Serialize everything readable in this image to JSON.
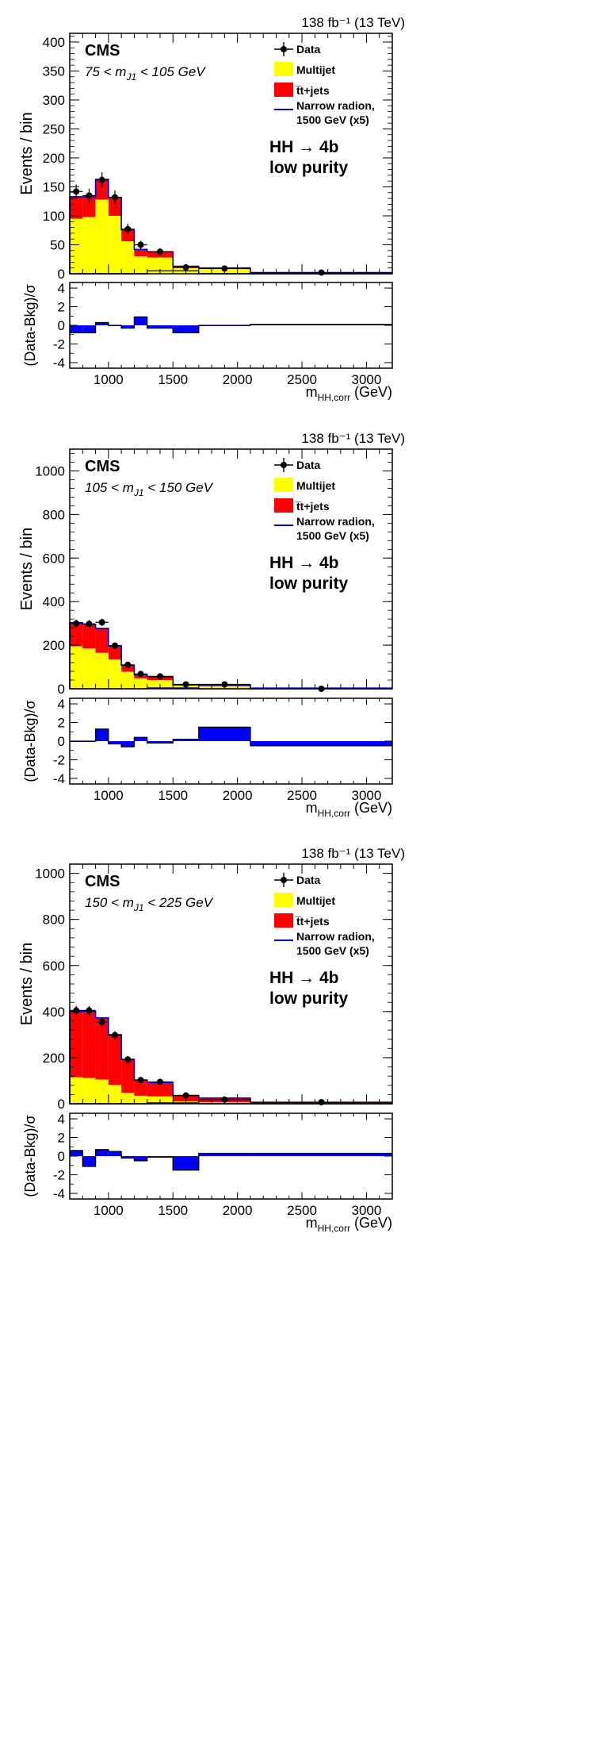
{
  "colors": {
    "multijet": "#ffff00",
    "ttbar": "#ff0000",
    "signal": "#0000cc",
    "ratio": "#0000ff",
    "data": "#000000",
    "frame": "#000000"
  },
  "labels": {
    "lumi": "138 fb⁻¹ (13 TeV)",
    "cms": "CMS",
    "process": "HH → 4b",
    "category": "low purity",
    "ylabel": "Events / bin",
    "ratio_ylabel": "(Data-Bkg)/σ",
    "xlabel": "m",
    "xlabel_sub": "HH,corr",
    "xlabel_unit": " (GeV)",
    "legend": {
      "data": "Data",
      "multijet": "Multijet",
      "ttbar": "t̅t+jets",
      "signal_line1": "Narrow radion,",
      "signal_line2": "1500 GeV (x5)"
    }
  },
  "chart_data": [
    {
      "type": "bar",
      "stacked": true,
      "title": "75 < m_J1 < 105 GeV",
      "mass_window": {
        "prefix": "75 < m",
        "sub": "J1",
        "suffix": " < 105 GeV"
      },
      "xlabel": "m_HH,corr (GeV)",
      "ylabel": "Events / bin",
      "xlim": [
        700,
        3200
      ],
      "ylim": [
        0,
        415
      ],
      "yticks": [
        0,
        50,
        100,
        150,
        200,
        250,
        300,
        350,
        400
      ],
      "xticks": [
        1000,
        1500,
        2000,
        2500,
        3000
      ],
      "bin_edges": [
        700,
        800,
        900,
        1000,
        1100,
        1200,
        1300,
        1500,
        1700,
        2100,
        3200
      ],
      "series": [
        {
          "name": "Multijet",
          "values": [
            95,
            98,
            128,
            100,
            56,
            30,
            28,
            10,
            8,
            2
          ]
        },
        {
          "name": "tt+jets",
          "values": [
            38,
            35,
            35,
            32,
            20,
            12,
            10,
            3,
            2,
            0
          ]
        },
        {
          "name": "Narrow radion, 1500 GeV (x5)",
          "values": [
            0,
            0,
            0,
            0,
            0,
            0,
            5,
            5,
            0,
            0
          ]
        }
      ],
      "data_points": [
        {
          "x": 750,
          "y": 142,
          "err": 12
        },
        {
          "x": 850,
          "y": 135,
          "err": 12
        },
        {
          "x": 950,
          "y": 162,
          "err": 13
        },
        {
          "x": 1050,
          "y": 132,
          "err": 12
        },
        {
          "x": 1150,
          "y": 77,
          "err": 9
        },
        {
          "x": 1250,
          "y": 50,
          "err": 7
        },
        {
          "x": 1400,
          "y": 38,
          "err": 6
        },
        {
          "x": 1600,
          "y": 11,
          "err": 3
        },
        {
          "x": 1900,
          "y": 9,
          "err": 3
        },
        {
          "x": 2650,
          "y": 2,
          "err": 1.4
        }
      ],
      "ratio": {
        "ylabel": "(Data-Bkg)/σ",
        "ylim": [
          -4.6,
          4.6
        ],
        "yticks": [
          -4,
          -2,
          0,
          2,
          4
        ],
        "values": [
          -0.8,
          -0.8,
          0.3,
          0.0,
          -0.3,
          0.9,
          -0.3,
          -0.8,
          0.0,
          0.1
        ]
      }
    },
    {
      "type": "bar",
      "stacked": true,
      "title": "105 < m_J1 < 150 GeV",
      "mass_window": {
        "prefix": "105 < m",
        "sub": "J1",
        "suffix": " < 150 GeV"
      },
      "xlabel": "m_HH,corr (GeV)",
      "ylabel": "Events / bin",
      "xlim": [
        700,
        3200
      ],
      "ylim": [
        0,
        1100
      ],
      "yticks": [
        0,
        200,
        400,
        600,
        800,
        1000
      ],
      "xticks": [
        1000,
        1500,
        2000,
        2500,
        3000
      ],
      "bin_edges": [
        700,
        800,
        900,
        1000,
        1100,
        1200,
        1300,
        1500,
        1700,
        2100,
        3200
      ],
      "series": [
        {
          "name": "Multijet",
          "values": [
            195,
            185,
            165,
            135,
            78,
            48,
            40,
            15,
            12,
            3
          ]
        },
        {
          "name": "tt+jets",
          "values": [
            108,
            110,
            112,
            62,
            30,
            17,
            15,
            3,
            3,
            0
          ]
        },
        {
          "name": "Narrow radion, 1500 GeV (x5)",
          "values": [
            0,
            0,
            0,
            0,
            0,
            0,
            4,
            4,
            0,
            0
          ]
        }
      ],
      "data_points": [
        {
          "x": 750,
          "y": 300,
          "err": 17
        },
        {
          "x": 850,
          "y": 298,
          "err": 17
        },
        {
          "x": 950,
          "y": 305,
          "err": 17
        },
        {
          "x": 1050,
          "y": 198,
          "err": 14
        },
        {
          "x": 1150,
          "y": 110,
          "err": 10
        },
        {
          "x": 1250,
          "y": 68,
          "err": 8
        },
        {
          "x": 1400,
          "y": 57,
          "err": 8
        },
        {
          "x": 1600,
          "y": 20,
          "err": 4
        },
        {
          "x": 1900,
          "y": 20,
          "err": 4
        },
        {
          "x": 2650,
          "y": 0,
          "err": 1
        }
      ],
      "ratio": {
        "ylabel": "(Data-Bkg)/σ",
        "ylim": [
          -4.6,
          4.6
        ],
        "yticks": [
          -4,
          -2,
          0,
          2,
          4
        ],
        "values": [
          0.0,
          0.0,
          1.3,
          -0.3,
          -0.6,
          0.4,
          -0.2,
          0.2,
          1.5,
          -0.5
        ]
      }
    },
    {
      "type": "bar",
      "stacked": true,
      "title": "150 < m_J1 < 225 GeV",
      "mass_window": {
        "prefix": "150 < m",
        "sub": "J1",
        "suffix": " < 225 GeV"
      },
      "xlabel": "m_HH,corr (GeV)",
      "ylabel": "Events / bin",
      "xlim": [
        700,
        3200
      ],
      "ylim": [
        0,
        1040
      ],
      "yticks": [
        0,
        200,
        400,
        600,
        800,
        1000
      ],
      "xticks": [
        1000,
        1500,
        2000,
        2500,
        3000
      ],
      "bin_edges": [
        700,
        800,
        900,
        1000,
        1100,
        1200,
        1300,
        1500,
        1700,
        2100,
        3200
      ],
      "series": [
        {
          "name": "Multijet",
          "values": [
            115,
            112,
            105,
            82,
            48,
            35,
            32,
            10,
            7,
            2
          ]
        },
        {
          "name": "tt+jets",
          "values": [
            285,
            290,
            268,
            218,
            145,
            68,
            60,
            26,
            18,
            4
          ]
        },
        {
          "name": "Narrow radion, 1500 GeV (x5)",
          "values": [
            0,
            0,
            0,
            0,
            0,
            0,
            4,
            4,
            0,
            0
          ]
        }
      ],
      "data_points": [
        {
          "x": 750,
          "y": 405,
          "err": 20
        },
        {
          "x": 850,
          "y": 405,
          "err": 20
        },
        {
          "x": 950,
          "y": 355,
          "err": 19
        },
        {
          "x": 1050,
          "y": 298,
          "err": 17
        },
        {
          "x": 1150,
          "y": 192,
          "err": 14
        },
        {
          "x": 1250,
          "y": 103,
          "err": 10
        },
        {
          "x": 1400,
          "y": 95,
          "err": 10
        },
        {
          "x": 1600,
          "y": 36,
          "err": 6
        },
        {
          "x": 1900,
          "y": 18,
          "err": 4
        },
        {
          "x": 2650,
          "y": 7,
          "err": 2.6
        }
      ],
      "ratio": {
        "ylabel": "(Data-Bkg)/σ",
        "ylim": [
          -4.6,
          4.6
        ],
        "yticks": [
          -4,
          -2,
          0,
          2,
          4
        ],
        "values": [
          0.6,
          -1.1,
          0.7,
          0.5,
          -0.2,
          -0.5,
          -0.1,
          -1.5,
          0.3,
          0.3
        ]
      }
    }
  ]
}
